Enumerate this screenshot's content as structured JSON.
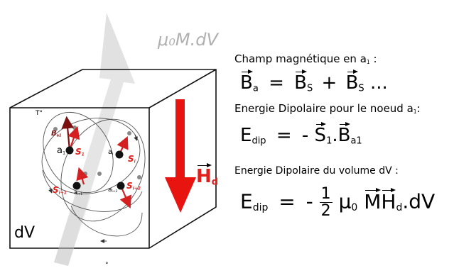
{
  "diagram": {
    "moment_label": "μ₀M.dV",
    "temperature_label": "T°",
    "volume_label": "dV",
    "field_label": "H",
    "field_sub": "d",
    "nodes": {
      "b_a1": "B",
      "b_a1_sub": "a1",
      "a1": "a",
      "a1_sub": "1",
      "s1": "S",
      "s1_sub": "1",
      "ai": "a",
      "ai_sub": "i",
      "si": "S",
      "si_sub": "i",
      "si1": "S",
      "si1_sub": "i+1",
      "ai1": "a",
      "ai1_sub": "i+1",
      "ai2": "a",
      "ai2_sub": "i+2",
      "si2": "S",
      "si2_sub": "i+2"
    },
    "origin_mark": "°"
  },
  "text": {
    "line1_pre": "Champ magnétique en a",
    "line1_sub": "1",
    "line1_post": " :",
    "eq1": {
      "b": "B",
      "b_sub": "a",
      "equals": "=",
      "bs1": "B",
      "bs1_sub": "S",
      "plus": "+",
      "bs2": "B",
      "bs2_sub": "S",
      "dots": "..."
    },
    "line2_pre": "Energie Dipolaire pour le noeud a",
    "line2_sub": "1",
    "line2_post": ":",
    "eq2": {
      "e": "E",
      "e_sub": "dip",
      "equals": "=",
      "minus": "-",
      "s": "S",
      "s_sub": "1",
      "dot": ".",
      "b": "B",
      "b_sub": "a1"
    },
    "line3": "Energie Dipolaire du volume dV  :",
    "eq3": {
      "e": "E",
      "e_sub": "dip",
      "equals": "=",
      "minus": "-",
      "num": "1",
      "den": "2",
      "mu": "μ",
      "mu_sub": "0",
      "m": "M",
      "h": "H",
      "h_sub": "d",
      "tail": ".dV"
    }
  },
  "colors": {
    "field_arrow": "#e8140f",
    "moment_arrow": "#cccccc",
    "node": "#111111",
    "vector": "#d42020"
  }
}
